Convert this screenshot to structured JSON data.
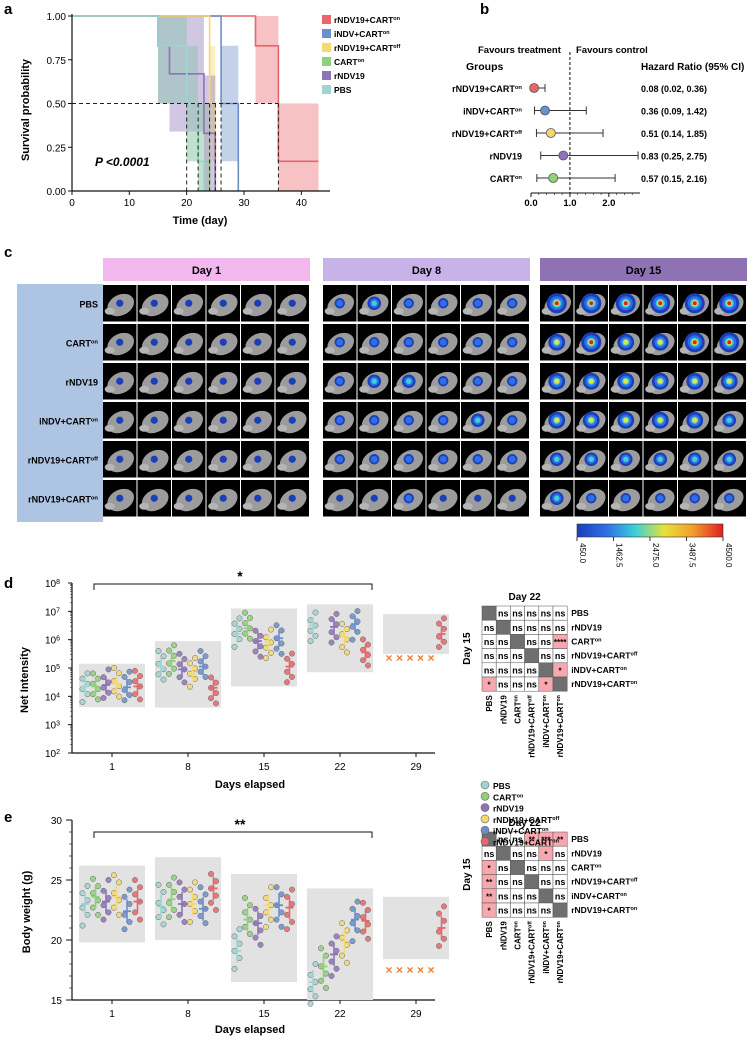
{
  "panel_letters": [
    "a",
    "b",
    "c",
    "d",
    "e"
  ],
  "group_colors": {
    "PBS": "#9fd5d1",
    "CART_on": "#8fd07a",
    "rNDV19": "#8f73b8",
    "rNDV19_CART_off": "#f5d870",
    "iNDV_CART_on": "#6a8fc9",
    "rNDV19_CART_on": "#e8666a"
  },
  "panel_a": {
    "xlabel": "Time (day)",
    "ylabel": "Survival probability",
    "pvalue": "P <0.0001",
    "yticks": [
      "0.00",
      "0.25",
      "0.50",
      "0.75",
      "1.00"
    ],
    "xticks": [
      "0",
      "10",
      "20",
      "30",
      "40"
    ],
    "legend": [
      {
        "label": "rNDV19+CART",
        "sup": "on",
        "color": "#e8666a"
      },
      {
        "label": "iNDV+CART",
        "sup": "on",
        "color": "#6a8fc9"
      },
      {
        "label": "rNDV19+CART",
        "sup": "off",
        "color": "#f5d870"
      },
      {
        "label": "CART",
        "sup": "on",
        "color": "#8fd07a"
      },
      {
        "label": "rNDV19",
        "sup": "",
        "color": "#8f73b8"
      },
      {
        "label": "PBS",
        "sup": "",
        "color": "#9fd5d1"
      }
    ]
  },
  "panel_b": {
    "favours_treatment": "Favours treatment",
    "favours_control": "Favours control",
    "groups_header": "Groups",
    "hr_header": "Hazard Ratio (95% CI)",
    "xticks": [
      "0.0",
      "1.0",
      "2.0"
    ],
    "rows": [
      {
        "label": "rNDV19+CART",
        "sup": "on",
        "hr": "0.08 (0.02, 0.36)",
        "color": "#e8666a"
      },
      {
        "label": "iNDV+CART",
        "sup": "on",
        "hr": "0.36 (0.09, 1.42)",
        "color": "#6a8fc9"
      },
      {
        "label": "rNDV19+CART",
        "sup": "off",
        "hr": "0.51 (0.14, 1.85)",
        "color": "#f5d870"
      },
      {
        "label": "rNDV19",
        "sup": "",
        "hr": "0.83 (0.25, 2.75)",
        "color": "#8f73b8"
      },
      {
        "label": "CART",
        "sup": "on",
        "hr": "0.57 (0.15, 2.16)",
        "color": "#8fd07a"
      }
    ]
  },
  "panel_c": {
    "days": [
      "Day 1",
      "Day 8",
      "Day 15"
    ],
    "day_colors": [
      "#f2b8ee",
      "#c8b3e8",
      "#8e72b3"
    ],
    "rows": [
      {
        "label": "PBS",
        "sup": ""
      },
      {
        "label": "CART",
        "sup": "on"
      },
      {
        "label": "rNDV19",
        "sup": ""
      },
      {
        "label": "iNDV+CART",
        "sup": "on"
      },
      {
        "label": "rNDV19+CART",
        "sup": "off"
      },
      {
        "label": "rNDV19+CART",
        "sup": "on"
      }
    ],
    "scale_ticks": [
      "450.0",
      "1462.5",
      "2475.0",
      "3487.5",
      "4500.0"
    ],
    "signal": [
      [
        1,
        1,
        1,
        1,
        1,
        1,
        2,
        3,
        2,
        2,
        2,
        2,
        5,
        5,
        5,
        5,
        5,
        5
      ],
      [
        1,
        1,
        1,
        1,
        1,
        1,
        2,
        2,
        2,
        2,
        2,
        2,
        4,
        5,
        4,
        4,
        5,
        5
      ],
      [
        1,
        1,
        1,
        1,
        1,
        1,
        2,
        3,
        3,
        2,
        2,
        2,
        4,
        4,
        4,
        4,
        4,
        4
      ],
      [
        1,
        1,
        1,
        1,
        1,
        1,
        2,
        2,
        2,
        2,
        3,
        2,
        4,
        4,
        4,
        4,
        4,
        3
      ],
      [
        1,
        1,
        1,
        1,
        1,
        1,
        2,
        2,
        2,
        2,
        2,
        2,
        3,
        3,
        3,
        3,
        3,
        3
      ],
      [
        1,
        1,
        1,
        1,
        1,
        1,
        1,
        1,
        2,
        1,
        1,
        1,
        3,
        2,
        2,
        2,
        2,
        2
      ]
    ]
  },
  "panel_d": {
    "ylabel": "Net Intensity",
    "xlabel": "Days elapsed",
    "sig": "*",
    "x_categories": [
      "1",
      "8",
      "15",
      "22",
      "29"
    ],
    "ytick_labels": [
      "10",
      "10",
      "10",
      "10",
      "10",
      "10",
      "10"
    ],
    "ytick_exps": [
      "2",
      "3",
      "4",
      "5",
      "6",
      "7",
      "8"
    ],
    "ylog_range": [
      2,
      8
    ],
    "dead_marker": "x",
    "matrix_title": "Day 22",
    "matrix_side": "Day 15",
    "matrix_rows": [
      "PBS",
      "rNDV19",
      "CART",
      "rNDV19+CART",
      "iNDV+CART",
      "rNDV19+CART"
    ],
    "matrix_row_sups": [
      "",
      "",
      "on",
      "off",
      "on",
      "on"
    ],
    "matrix_cells": [
      [
        "",
        "ns",
        "ns",
        "ns",
        "ns",
        "ns"
      ],
      [
        "ns",
        "",
        "ns",
        "ns",
        "ns",
        "ns"
      ],
      [
        "ns",
        "ns",
        "",
        "ns",
        "ns",
        "****"
      ],
      [
        "ns",
        "ns",
        "ns",
        "",
        "ns",
        "ns"
      ],
      [
        "ns",
        "ns",
        "ns",
        "ns",
        "",
        "*"
      ],
      [
        "*",
        "ns",
        "ns",
        "ns",
        "*",
        ""
      ]
    ],
    "means": {
      "1": [
        4.35,
        4.35,
        4.4,
        4.45,
        4.32,
        4.35
      ],
      "8": [
        5.05,
        5.25,
        4.95,
        4.8,
        5.05,
        4.3
      ],
      "15": [
        6.2,
        6.4,
        5.95,
        5.9,
        6.05,
        5.05
      ],
      "22": [
        6.5,
        0,
        6.45,
        6.1,
        6.55,
        5.55
      ],
      "29": [
        0,
        0,
        0,
        0,
        0,
        6.2
      ]
    }
  },
  "panel_e": {
    "ylabel": "Body weight (g)",
    "xlabel": "Days elapsed",
    "sig": "**",
    "x_categories": [
      "1",
      "8",
      "15",
      "22",
      "29"
    ],
    "yticks": [
      "15",
      "20",
      "25",
      "30"
    ],
    "ylim": [
      15,
      30
    ],
    "matrix_title": "Day 22",
    "matrix_side": "Day 15",
    "matrix_rows": [
      "PBS",
      "rNDV19",
      "CART",
      "rNDV19+CART",
      "iNDV+CART",
      "rNDV19+CART"
    ],
    "matrix_row_sups": [
      "",
      "",
      "on",
      "off",
      "on",
      "on"
    ],
    "matrix_cells": [
      [
        "",
        "ns",
        "ns",
        "**",
        "***",
        "**"
      ],
      [
        "ns",
        "",
        "ns",
        "ns",
        "*",
        "ns"
      ],
      [
        "*",
        "ns",
        "",
        "ns",
        "ns",
        "ns"
      ],
      [
        "**",
        "ns",
        "ns",
        "",
        "ns",
        "ns"
      ],
      [
        "**",
        "ns",
        "ns",
        "ns",
        "",
        "ns"
      ],
      [
        "*",
        "ns",
        "ns",
        "ns",
        "ns",
        ""
      ]
    ],
    "means": {
      "1": [
        23.0,
        23.6,
        23.2,
        23.6,
        22.4,
        23.2
      ],
      "8": [
        22.8,
        23.4,
        23.0,
        23.0,
        22.6,
        24.3
      ],
      "15": [
        19.1,
        21.7,
        21.4,
        22.9,
        22.9,
        22.7
      ],
      "22": [
        16.5,
        17.8,
        18.8,
        19.9,
        21.7,
        21.6
      ],
      "29": [
        0,
        0,
        0,
        0,
        0,
        21.0
      ]
    },
    "legend": [
      {
        "label": "PBS",
        "sup": "",
        "color": "#9fd5d1"
      },
      {
        "label": "CART",
        "sup": "on",
        "color": "#8fd07a"
      },
      {
        "label": "rNDV19",
        "sup": "",
        "color": "#8f73b8"
      },
      {
        "label": "rNDV19+CART",
        "sup": "off",
        "color": "#f5d870"
      },
      {
        "label": "iNDV+CART",
        "sup": "on",
        "color": "#6a8fc9"
      },
      {
        "label": "rNDV19+CART",
        "sup": "on",
        "color": "#e8666a"
      }
    ]
  },
  "chart_data": [
    {
      "type": "line",
      "title": "",
      "xlabel": "Time (day)",
      "ylabel": "Survival probability",
      "xlim": [
        0,
        45
      ],
      "ylim": [
        0,
        1
      ],
      "series": [
        {
          "name": "rNDV19+CARTon",
          "x": [
            0,
            32,
            32,
            36,
            36,
            41,
            43
          ],
          "values": [
            1,
            1,
            0.83,
            0.83,
            0.17,
            0.17,
            0.17
          ]
        },
        {
          "name": "iNDV+CARTon",
          "x": [
            0,
            22,
            22,
            26,
            26,
            29,
            29
          ],
          "values": [
            1,
            1,
            1,
            1,
            0.5,
            0.5,
            0
          ]
        },
        {
          "name": "rNDV19+CARToff",
          "x": [
            0,
            24,
            24,
            25,
            25,
            26
          ],
          "values": [
            1,
            1,
            0.5,
            0.5,
            0,
            0
          ]
        },
        {
          "name": "CARTon",
          "x": [
            0,
            15,
            15,
            20,
            20,
            22,
            22,
            24,
            24
          ],
          "values": [
            1,
            1,
            0.83,
            0.83,
            0.5,
            0.5,
            0.17,
            0.17,
            0
          ]
        },
        {
          "name": "rNDV19",
          "x": [
            0,
            15,
            15,
            17,
            17,
            23,
            23,
            25,
            25
          ],
          "values": [
            1,
            1,
            0.83,
            0.83,
            0.67,
            0.67,
            0.33,
            0.33,
            0
          ]
        },
        {
          "name": "PBS",
          "x": [
            0,
            15,
            15,
            20,
            20,
            22,
            22,
            23,
            23
          ],
          "values": [
            1,
            1,
            0.83,
            0.83,
            0.5,
            0.5,
            0.17,
            0.17,
            0
          ]
        }
      ],
      "annotations": [
        "P <0.0001"
      ]
    },
    {
      "type": "scatter",
      "title": "",
      "xlabel": "",
      "ylabel": "",
      "categories": [
        "rNDV19+CARTon",
        "iNDV+CARTon",
        "rNDV19+CARToff",
        "rNDV19",
        "CARTon"
      ],
      "series": [
        {
          "name": "hazard_ratio",
          "values": [
            0.08,
            0.36,
            0.51,
            0.83,
            0.57
          ]
        },
        {
          "name": "ci_low",
          "values": [
            0.02,
            0.09,
            0.14,
            0.25,
            0.15
          ]
        },
        {
          "name": "ci_high",
          "values": [
            0.36,
            1.42,
            1.85,
            2.75,
            2.16
          ]
        }
      ],
      "reference_line": 1.0
    }
  ]
}
